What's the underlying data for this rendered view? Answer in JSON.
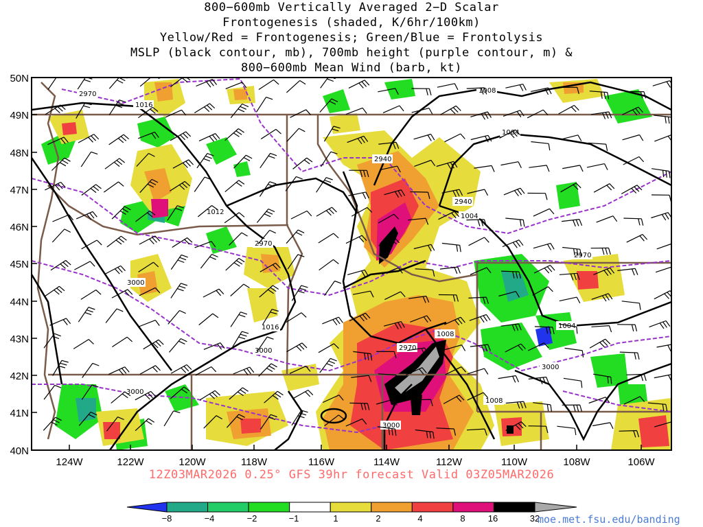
{
  "title_lines": [
    "800−600mb Vertically Averaged 2−D Scalar",
    "Frontogenesis (shaded, K/6hr/100km)",
    "Yellow/Red = Frontogenesis;  Green/Blue = Frontolysis",
    "MSLP (black contour, mb), 700mb height (purple contour, m) &",
    "800−600mb Mean Wind (barb, kt)"
  ],
  "lat_labels": [
    "50N",
    "49N",
    "48N",
    "47N",
    "46N",
    "45N",
    "44N",
    "43N",
    "42N",
    "41N",
    "40N"
  ],
  "lon_labels": [
    "124W",
    "122W",
    "120W",
    "118W",
    "116W",
    "114W",
    "112W",
    "110W",
    "108W",
    "106W"
  ],
  "footer": "12Z03MAR2026 0.25° GFS 39hr forecast Valid 03Z05MAR2026",
  "source_url": "moe.met.fsu.edu/banding",
  "colorbar": {
    "labels": [
      "−8",
      "−4",
      "−2",
      "−1",
      "1",
      "2",
      "4",
      "8",
      "16",
      "32"
    ],
    "colors": [
      "#2233ee",
      "#22aa88",
      "#22cc66",
      "#22dd22",
      "#ffffff",
      "#e6dc3c",
      "#f0a030",
      "#f04040",
      "#e0107a",
      "#000000",
      "#a8a8a8"
    ]
  },
  "mslp_labels": [
    "1016",
    "1012",
    "1016",
    "1008",
    "1004",
    "1004",
    "1008",
    "1008",
    "1004"
  ],
  "height_labels": [
    "2970",
    "2940",
    "2940",
    "2970",
    "3000",
    "3000",
    "3000",
    "2970",
    "2970",
    "3000",
    "3000"
  ]
}
